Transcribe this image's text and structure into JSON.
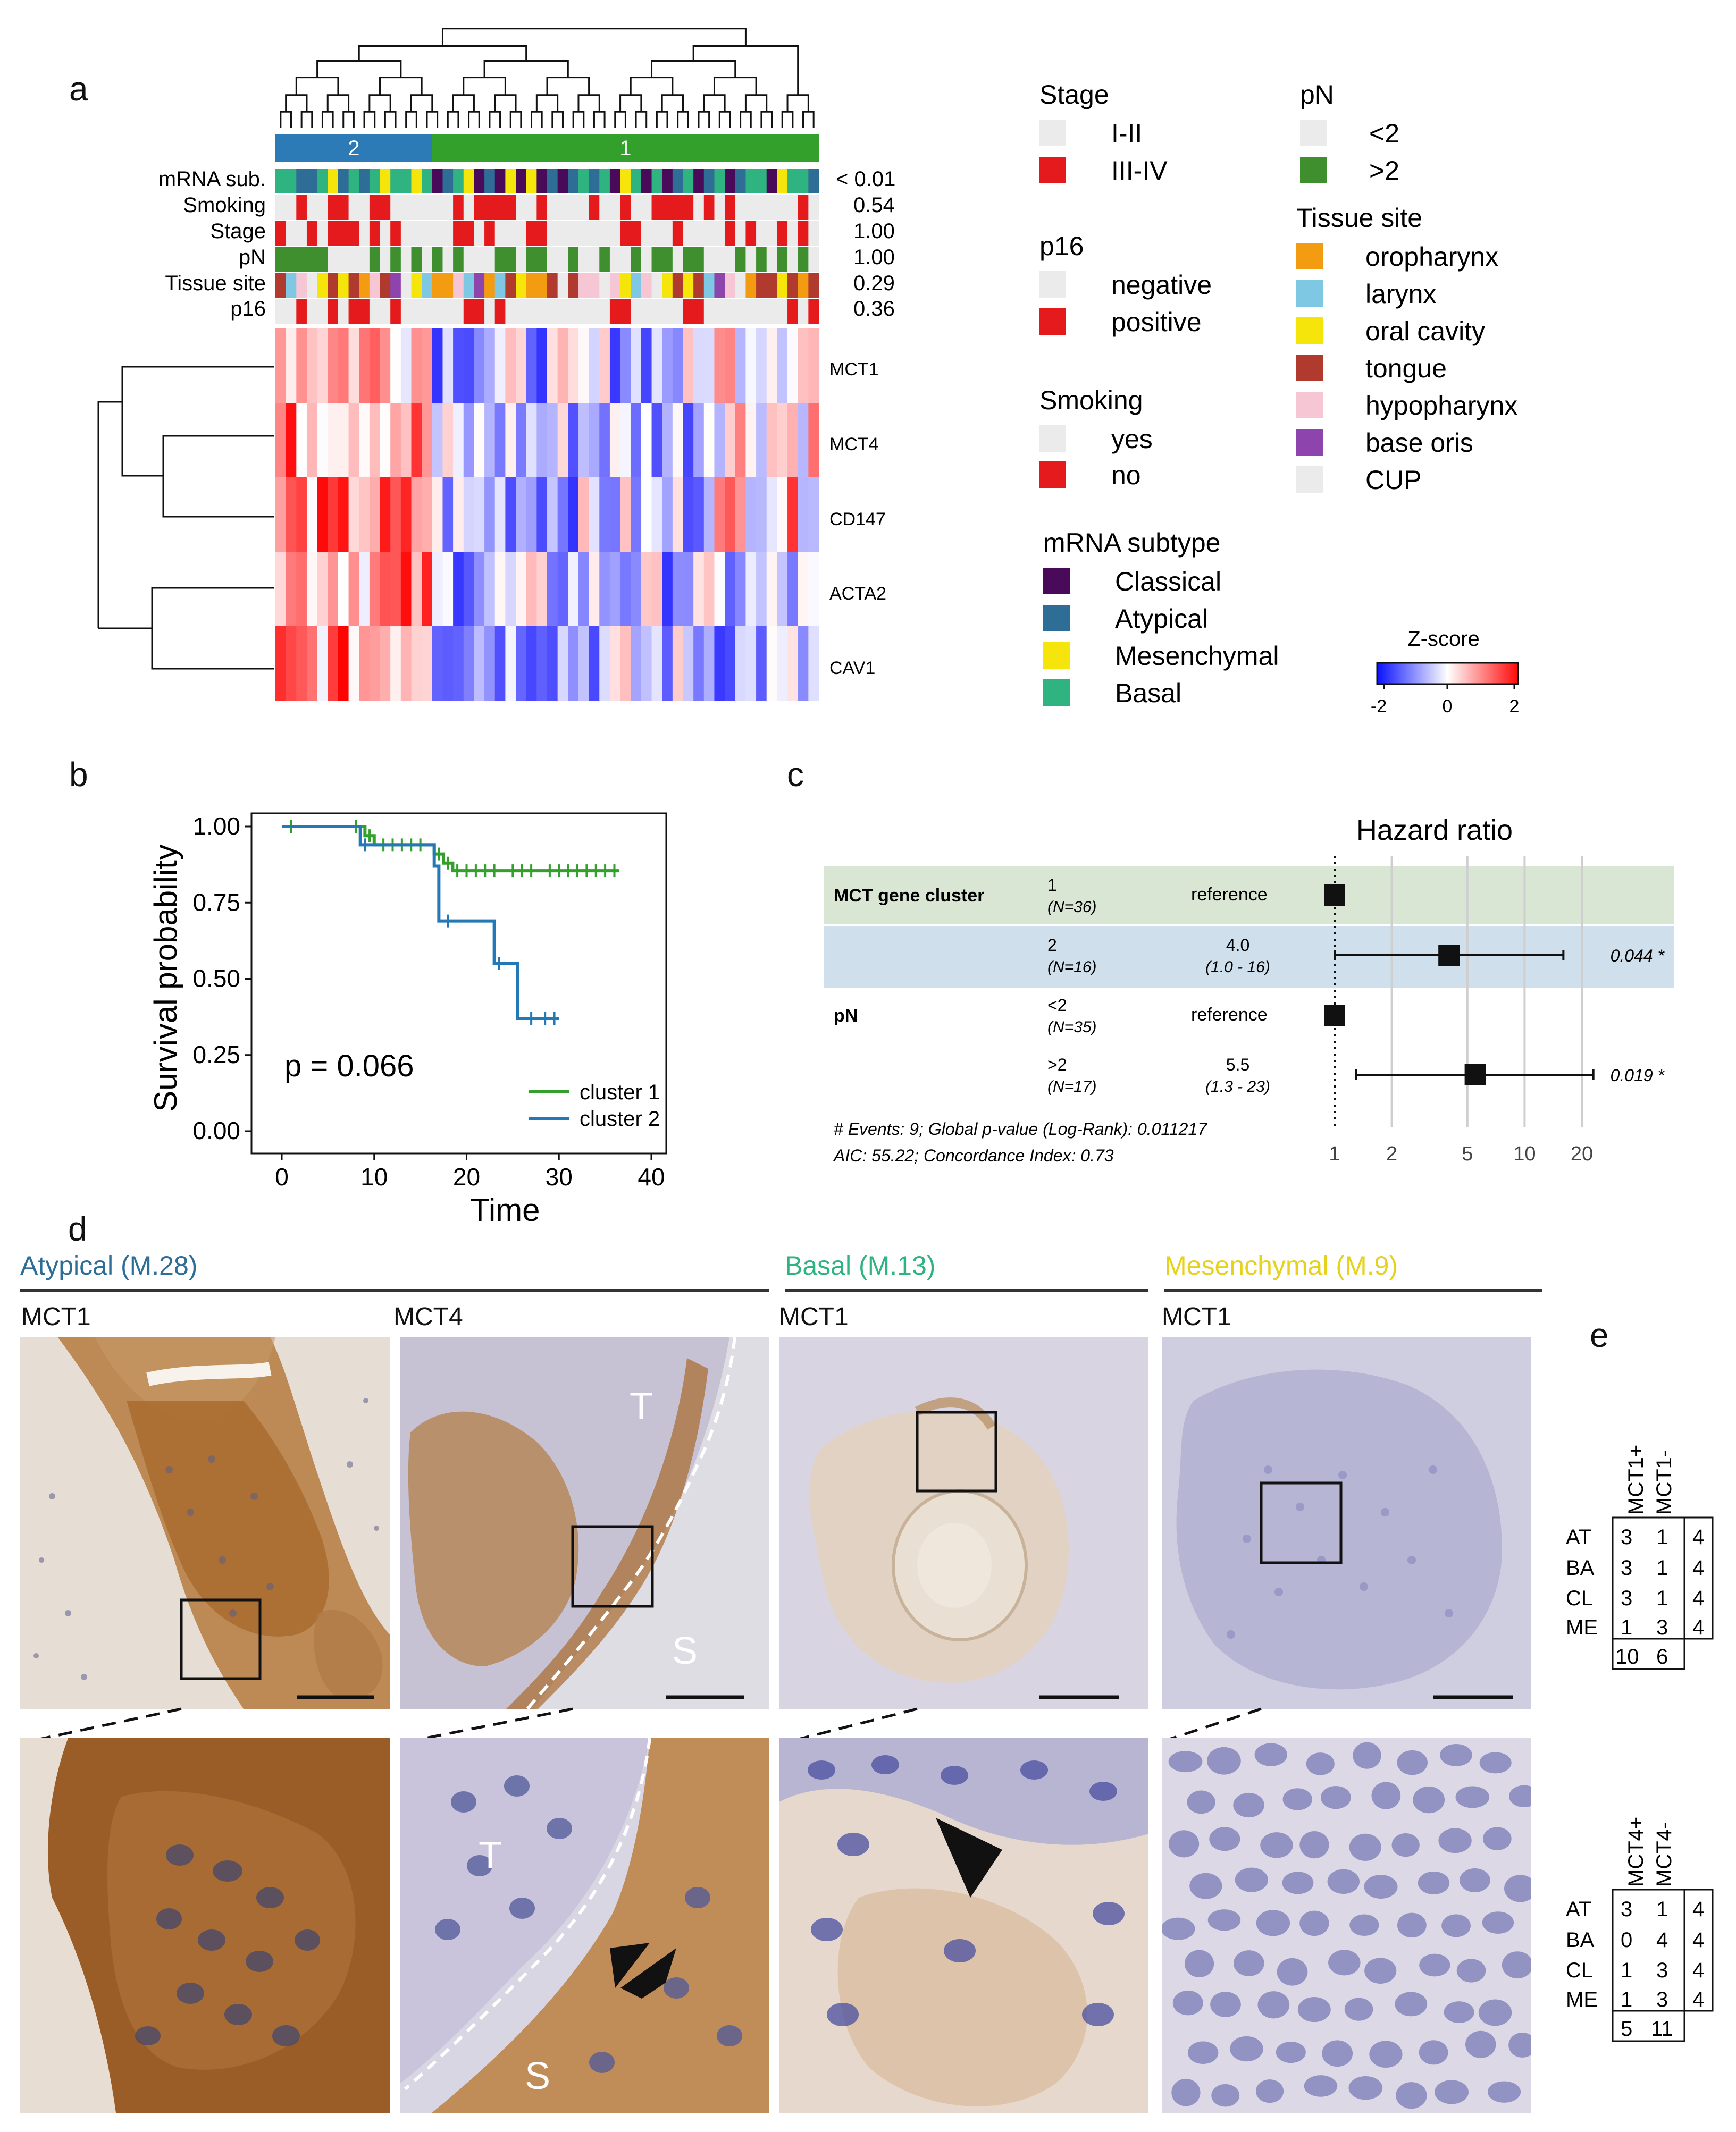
{
  "panels": {
    "a": "a",
    "b": "b",
    "c": "c",
    "d": "d",
    "e": "e"
  },
  "heatmap": {
    "clusters": [
      {
        "label": "2",
        "color": "#2c7bb6"
      },
      {
        "label": "1",
        "color": "#33a02c"
      }
    ],
    "annotation_rows": [
      {
        "label": "mRNA sub.",
        "p": "< 0.01"
      },
      {
        "label": "Smoking",
        "p": "0.54"
      },
      {
        "label": "Stage",
        "p": "1.00"
      },
      {
        "label": "pN",
        "p": "1.00"
      },
      {
        "label": "Tissue site",
        "p": "0.29"
      },
      {
        "label": "p16",
        "p": "0.36"
      }
    ],
    "genes": [
      "MCT1",
      "MCT4",
      "CD147",
      "ACTA2",
      "CAV1"
    ],
    "colors": {
      "neg": "#1f2bff",
      "mid": "#ffffff",
      "pos": "#ff1f1f",
      "grey": "#ebebeb",
      "red": "#e41a1c",
      "green": "#3f8f2f"
    }
  },
  "legend": {
    "stage": {
      "title": "Stage",
      "items": [
        {
          "label": "I-II",
          "color": "#ebebeb"
        },
        {
          "label": "III-IV",
          "color": "#e41a1c"
        }
      ]
    },
    "pn": {
      "title": "pN",
      "items": [
        {
          "label": "<2",
          "color": "#ebebeb"
        },
        {
          "label": ">2",
          "color": "#3f8f2f"
        }
      ]
    },
    "p16": {
      "title": "p16",
      "items": [
        {
          "label": "negative",
          "color": "#ebebeb"
        },
        {
          "label": "positive",
          "color": "#e41a1c"
        }
      ]
    },
    "tissue": {
      "title": "Tissue site",
      "items": [
        {
          "label": "oropharynx",
          "color": "#f39c12"
        },
        {
          "label": "larynx",
          "color": "#7ec8e3"
        },
        {
          "label": "oral cavity",
          "color": "#f5e50a"
        },
        {
          "label": "tongue",
          "color": "#b03a2e"
        },
        {
          "label": "hypopharynx",
          "color": "#f7c6d4"
        },
        {
          "label": "base oris",
          "color": "#8e44ad"
        },
        {
          "label": "CUP",
          "color": "#ebebeb"
        }
      ]
    },
    "smoking": {
      "title": "Smoking",
      "items": [
        {
          "label": "yes",
          "color": "#ebebeb"
        },
        {
          "label": "no",
          "color": "#e41a1c"
        }
      ]
    },
    "mrna": {
      "title": "mRNA subtype",
      "items": [
        {
          "label": "Classical",
          "color": "#4a0a5a"
        },
        {
          "label": "Atypical",
          "color": "#2e6d96"
        },
        {
          "label": "Mesenchymal",
          "color": "#f5e50a"
        },
        {
          "label": "Basal",
          "color": "#2fb381"
        }
      ]
    },
    "zscore": {
      "title": "Z-score",
      "ticks": [
        "-2",
        "0",
        "2"
      ]
    }
  },
  "chart_data": [
    {
      "type": "line",
      "ylabel": "Survival probability",
      "xlabel": "Time",
      "xlim": [
        0,
        40
      ],
      "ylim": [
        0,
        1
      ],
      "xticks": [
        "0",
        "10",
        "20",
        "30",
        "40"
      ],
      "yticks": [
        "0.00",
        "0.25",
        "0.50",
        "0.75",
        "1.00"
      ],
      "annotation": "p = 0.066",
      "legend_position": "bottom-right",
      "series": [
        {
          "name": "cluster 1",
          "color": "#33a02c",
          "steps": [
            [
              0,
              1.0
            ],
            [
              9,
              1.0
            ],
            [
              9,
              0.97
            ],
            [
              10,
              0.97
            ],
            [
              10,
              0.94
            ],
            [
              16.5,
              0.94
            ],
            [
              16.5,
              0.91
            ],
            [
              17.5,
              0.91
            ],
            [
              17.5,
              0.88
            ],
            [
              18.5,
              0.88
            ],
            [
              18.5,
              0.855
            ],
            [
              36.5,
              0.855
            ]
          ],
          "censors": [
            [
              1,
              1.0
            ],
            [
              8,
              1.0
            ],
            [
              9.5,
              0.97
            ],
            [
              11,
              0.94
            ],
            [
              12,
              0.94
            ],
            [
              13,
              0.94
            ],
            [
              14,
              0.94
            ],
            [
              15,
              0.94
            ],
            [
              17,
              0.91
            ],
            [
              18,
              0.88
            ],
            [
              19,
              0.855
            ],
            [
              20,
              0.855
            ],
            [
              21,
              0.855
            ],
            [
              22,
              0.855
            ],
            [
              23,
              0.855
            ],
            [
              25,
              0.855
            ],
            [
              26,
              0.855
            ],
            [
              27,
              0.855
            ],
            [
              29,
              0.855
            ],
            [
              30,
              0.855
            ],
            [
              31,
              0.855
            ],
            [
              32,
              0.855
            ],
            [
              33,
              0.855
            ],
            [
              34,
              0.855
            ],
            [
              35,
              0.855
            ],
            [
              36,
              0.855
            ]
          ]
        },
        {
          "name": "cluster 2",
          "color": "#2378b5",
          "steps": [
            [
              0,
              1.0
            ],
            [
              8.5,
              1.0
            ],
            [
              8.5,
              0.94
            ],
            [
              16.5,
              0.94
            ],
            [
              16.5,
              0.87
            ],
            [
              17,
              0.87
            ],
            [
              17,
              0.69
            ],
            [
              23,
              0.69
            ],
            [
              23,
              0.55
            ],
            [
              25.5,
              0.55
            ],
            [
              25.5,
              0.37
            ],
            [
              30,
              0.37
            ]
          ],
          "censors": [
            [
              9,
              0.94
            ],
            [
              18,
              0.69
            ],
            [
              23.5,
              0.55
            ],
            [
              27,
              0.37
            ],
            [
              28.5,
              0.37
            ],
            [
              29.5,
              0.37
            ]
          ]
        }
      ]
    },
    {
      "type": "forest",
      "title": "Hazard ratio",
      "xscale": "log",
      "xticks": [
        "1",
        "2",
        "5",
        "10",
        "20"
      ],
      "footer": [
        "# Events: 9; Global p-value (Log-Rank): 0.011217",
        "AIC: 55.22; Concordance Index: 0.73"
      ],
      "rows": [
        {
          "variable": "MCT gene cluster",
          "level": "1",
          "n": "(N=36)",
          "hr_text": "reference",
          "ci_text": "",
          "hr": 1.0,
          "lo": null,
          "hi": null,
          "p": "",
          "bg": "#d9e6d4"
        },
        {
          "variable": "",
          "level": "2",
          "n": "(N=16)",
          "hr_text": "4.0",
          "ci_text": "(1.0 - 16)",
          "hr": 4.0,
          "lo": 1.0,
          "hi": 16,
          "p": "0.044 *",
          "bg": "#cfe0ec"
        },
        {
          "variable": "pN",
          "level": "<2",
          "n": "(N=35)",
          "hr_text": "reference",
          "ci_text": "",
          "hr": 1.0,
          "lo": null,
          "hi": null,
          "p": "",
          "bg": "#ffffff"
        },
        {
          "variable": "",
          "level": ">2",
          "n": "(N=17)",
          "hr_text": "5.5",
          "ci_text": "(1.3 - 23)",
          "hr": 5.5,
          "lo": 1.3,
          "hi": 23,
          "p": "0.019 *",
          "bg": "#ffffff"
        }
      ]
    }
  ],
  "histology": {
    "groups": [
      {
        "title": "Atypical (M.28)",
        "color": "#2e6d96"
      },
      {
        "title": "Basal (M.13)",
        "color": "#2fb381"
      },
      {
        "title": "Mesenchymal (M.9)",
        "color": "#e6d21a"
      }
    ],
    "panels": [
      "MCT1",
      "MCT4",
      "MCT1",
      "MCT1"
    ],
    "labels": {
      "T": "T",
      "S": "S"
    }
  },
  "tables": [
    {
      "cols": [
        "MCT1+",
        "MCT1-"
      ],
      "rows": [
        {
          "label": "AT",
          "a": "3",
          "b": "1",
          "t": "4"
        },
        {
          "label": "BA",
          "a": "3",
          "b": "1",
          "t": "4"
        },
        {
          "label": "CL",
          "a": "3",
          "b": "1",
          "t": "4"
        },
        {
          "label": "ME",
          "a": "1",
          "b": "3",
          "t": "4"
        }
      ],
      "totals": [
        "10",
        "6"
      ]
    },
    {
      "cols": [
        "MCT4+",
        "MCT4-"
      ],
      "rows": [
        {
          "label": "AT",
          "a": "3",
          "b": "1",
          "t": "4"
        },
        {
          "label": "BA",
          "a": "0",
          "b": "4",
          "t": "4"
        },
        {
          "label": "CL",
          "a": "1",
          "b": "3",
          "t": "4"
        },
        {
          "label": "ME",
          "a": "1",
          "b": "3",
          "t": "4"
        }
      ],
      "totals": [
        "5",
        "11"
      ]
    }
  ]
}
